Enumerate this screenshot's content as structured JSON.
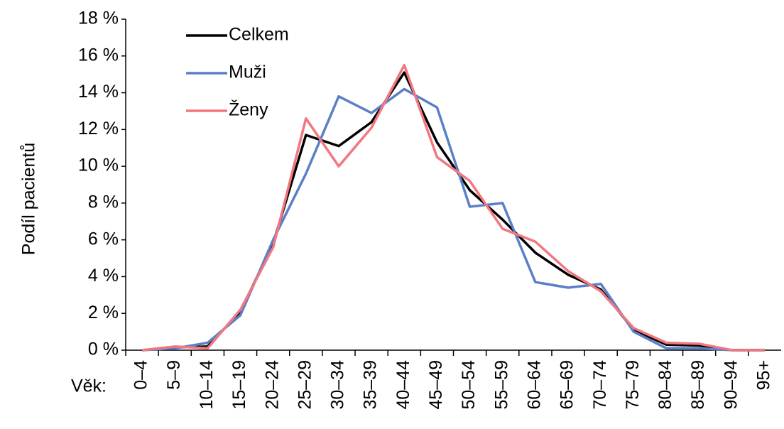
{
  "chart_data": {
    "type": "line",
    "y_label": "Podíl pacientů",
    "x_label": "Věk:",
    "categories": [
      "0–4",
      "5–9",
      "10–14",
      "15–19",
      "20–24",
      "25–29",
      "30–34",
      "35–39",
      "40–44",
      "45–49",
      "50–54",
      "55–59",
      "60–64",
      "65–69",
      "70–74",
      "75–79",
      "80–84",
      "85–89",
      "90–94",
      "95+"
    ],
    "series": [
      {
        "name": "Celkem",
        "color": "#000000",
        "values": [
          0,
          0.15,
          0.2,
          2.1,
          5.8,
          11.7,
          11.1,
          12.4,
          15.1,
          11.3,
          8.7,
          7.1,
          5.3,
          4.1,
          3.3,
          1.1,
          0.3,
          0.25,
          0,
          0
        ]
      },
      {
        "name": "Muži",
        "color": "#5b7fc7",
        "values": [
          0,
          0.1,
          0.4,
          1.9,
          6.0,
          9.6,
          13.8,
          12.9,
          14.2,
          13.2,
          7.8,
          8.0,
          3.7,
          3.4,
          3.6,
          1.0,
          0.1,
          0.1,
          0,
          0
        ]
      },
      {
        "name": "Ženy",
        "color": "#f2777f",
        "values": [
          0,
          0.2,
          0.1,
          2.2,
          5.6,
          12.6,
          10.0,
          12.1,
          15.5,
          10.5,
          9.2,
          6.6,
          5.9,
          4.3,
          3.2,
          1.2,
          0.4,
          0.35,
          0,
          0
        ]
      }
    ],
    "ylim": [
      0,
      18
    ],
    "yticks": [
      {
        "value": 0,
        "label": "0 %"
      },
      {
        "value": 2,
        "label": "2 %"
      },
      {
        "value": 4,
        "label": "4 %"
      },
      {
        "value": 6,
        "label": "6 %"
      },
      {
        "value": 8,
        "label": "8 %"
      },
      {
        "value": 10,
        "label": "10 %"
      },
      {
        "value": 12,
        "label": "12 %"
      },
      {
        "value": 14,
        "label": "14 %"
      },
      {
        "value": 16,
        "label": "16 %"
      },
      {
        "value": 18,
        "label": "18 %"
      }
    ],
    "legend": "upper left"
  }
}
